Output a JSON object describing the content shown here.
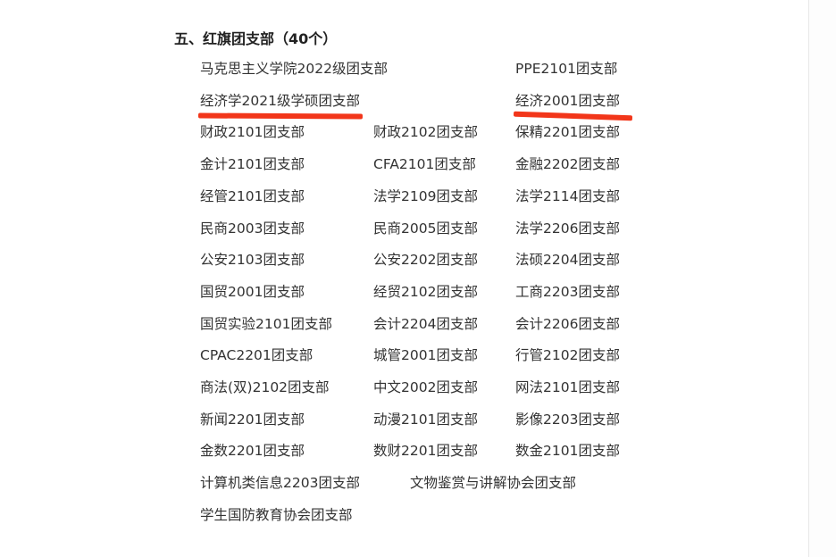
{
  "section": {
    "heading": "五、红旗团支部（40个）",
    "highlight_color": "#f2361a",
    "rows": [
      [
        "马克思主义学院2022级团支部",
        "",
        "PPE2101团支部"
      ],
      [
        "经济学2021级学硕团支部",
        "",
        "经济2001团支部"
      ],
      [
        "财政2101团支部",
        "财政2102团支部",
        "保精2201团支部"
      ],
      [
        "金计2101团支部",
        "CFA2101团支部",
        "金融2202团支部"
      ],
      [
        "经管2101团支部",
        "法学2109团支部",
        "法学2114团支部"
      ],
      [
        "民商2003团支部",
        "民商2005团支部",
        "法学2206团支部"
      ],
      [
        "公安2103团支部",
        "公安2202团支部",
        "法硕2204团支部"
      ],
      [
        "国贸2001团支部",
        "经贸2102团支部",
        "工商2203团支部"
      ],
      [
        "国贸实验2101团支部",
        "会计2204团支部",
        "会计2206团支部"
      ],
      [
        "CPAC2201团支部",
        "城管2001团支部",
        "行管2102团支部"
      ],
      [
        "商法(双)2102团支部",
        "中文2002团支部",
        "网法2101团支部"
      ],
      [
        "新闻2201团支部",
        "动漫2101团支部",
        "影像2203团支部"
      ],
      [
        "金数2201团支部",
        "数财2201团支部",
        "数金2101团支部"
      ],
      [
        "计算机类信息2203团支部",
        "文物鉴赏与讲解协会团支部",
        ""
      ],
      [
        "学生国防教育协会团支部",
        "",
        ""
      ]
    ]
  }
}
